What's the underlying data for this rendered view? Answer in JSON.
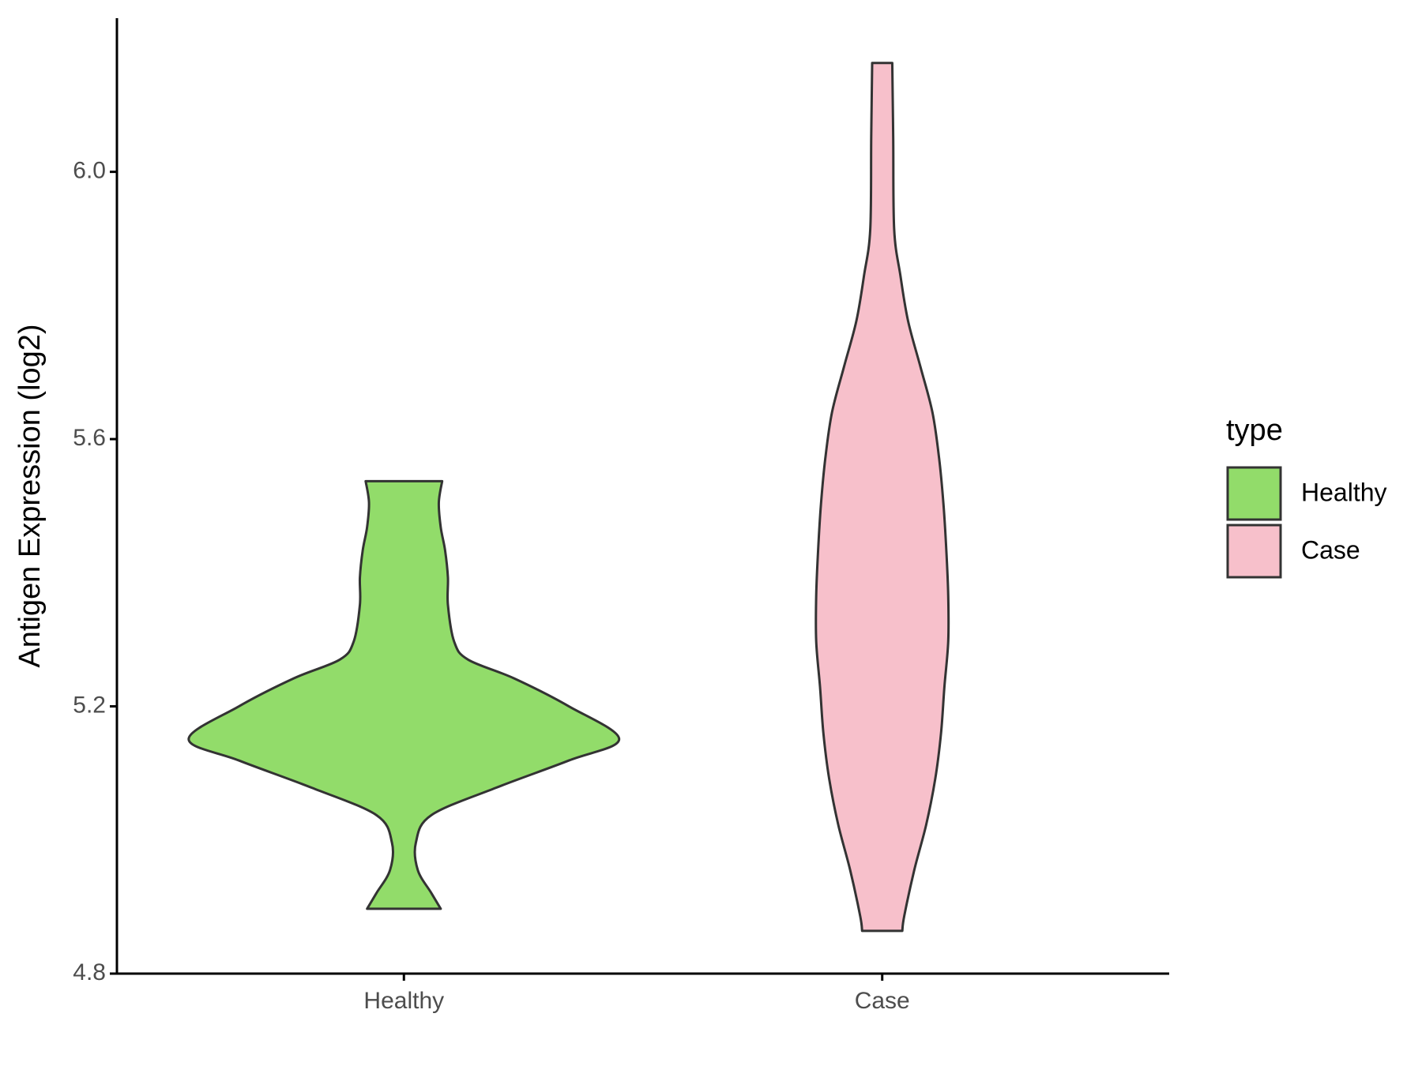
{
  "chart_data": {
    "type": "violin",
    "y_label": "Antigen Expression (log2)",
    "categories": [
      "Healthy",
      "Case"
    ],
    "series": [
      {
        "name": "Healthy",
        "color": "#92dc6a",
        "y": [
          5.537,
          5.505,
          5.468,
          5.434,
          5.393,
          5.352,
          5.297,
          5.27,
          5.242,
          5.2,
          5.151,
          5.119,
          5.078,
          5.037,
          4.996,
          4.955,
          4.921,
          4.897
        ],
        "width": [
          0.08,
          0.073,
          0.077,
          0.086,
          0.092,
          0.092,
          0.105,
          0.134,
          0.23,
          0.345,
          0.45,
          0.345,
          0.192,
          0.057,
          0.025,
          0.029,
          0.057,
          0.077
        ]
      },
      {
        "name": "Case",
        "color": "#f7c0cb",
        "y": [
          6.163,
          6.051,
          5.914,
          5.845,
          5.777,
          5.708,
          5.64,
          5.571,
          5.503,
          5.434,
          5.366,
          5.297,
          5.229,
          5.16,
          5.092,
          5.023,
          4.955,
          4.886,
          4.864
        ],
        "width": [
          0.021,
          0.023,
          0.025,
          0.038,
          0.054,
          0.08,
          0.105,
          0.119,
          0.128,
          0.134,
          0.138,
          0.138,
          0.13,
          0.123,
          0.111,
          0.092,
          0.067,
          0.046,
          0.042
        ]
      }
    ],
    "ylim": [
      4.8,
      6.23
    ],
    "yticks": [
      {
        "value": 4.8,
        "label": "4.8"
      },
      {
        "value": 5.2,
        "label": "5.2"
      },
      {
        "value": 5.6,
        "label": "5.6"
      },
      {
        "value": 6.0,
        "label": "6.0"
      }
    ],
    "legend_title": "type",
    "legend_position": "right"
  }
}
